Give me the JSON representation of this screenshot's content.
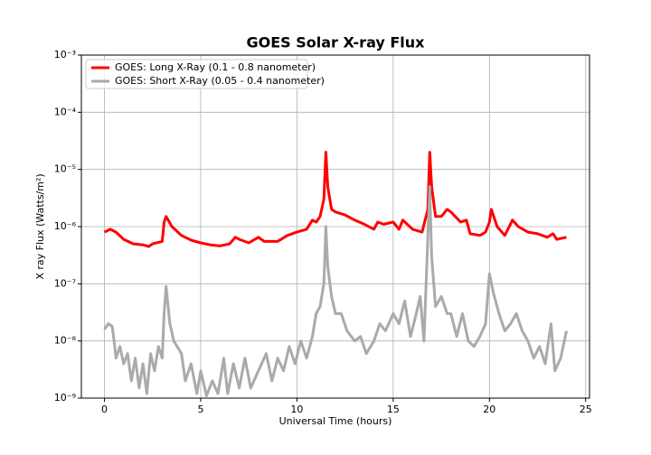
{
  "chart_data": {
    "type": "line",
    "title": "GOES Solar X-ray Flux",
    "x_label": "Universal Time (hours)",
    "y_label": "X ray Flux (Watts/m²)",
    "log_y": true,
    "grid": true,
    "legend": "upper left",
    "xlim": [
      -1.2,
      25.2
    ],
    "ylim": [
      1e-09,
      0.001
    ],
    "xticks": [
      0,
      5,
      10,
      15,
      20,
      25
    ],
    "yticks": [
      {
        "value": 1e-09,
        "label": "10⁻⁹"
      },
      {
        "value": 1e-08,
        "label": "10⁻⁸"
      },
      {
        "value": 1e-07,
        "label": "10⁻⁷"
      },
      {
        "value": 1e-06,
        "label": "10⁻⁶"
      },
      {
        "value": 1e-05,
        "label": "10⁻⁵"
      },
      {
        "value": 0.0001,
        "label": "10⁻⁴"
      },
      {
        "value": 0.001,
        "label": "10⁻³"
      }
    ],
    "series": [
      {
        "name": "GOES: Long X-Ray (0.1 - 0.8 nanometer)",
        "color": "#ff0000",
        "x": [
          0,
          0.3,
          0.6,
          1,
          1.5,
          2,
          2.3,
          2.5,
          3,
          3.1,
          3.2,
          3.5,
          4,
          4.5,
          5,
          5.5,
          6,
          6.5,
          6.8,
          7,
          7.5,
          8,
          8.3,
          9,
          9.5,
          10,
          10.5,
          10.8,
          11,
          11.2,
          11.4,
          11.5,
          11.6,
          11.8,
          12,
          12.5,
          13,
          13.5,
          14,
          14.2,
          14.5,
          15,
          15.3,
          15.5,
          16,
          16.5,
          16.8,
          16.9,
          17,
          17.2,
          17.5,
          17.8,
          18,
          18.5,
          18.8,
          19,
          19.5,
          19.8,
          20,
          20.1,
          20.4,
          20.8,
          21.2,
          21.5,
          22,
          22.5,
          23,
          23.3,
          23.5,
          24
        ],
        "values": [
          8e-07,
          9e-07,
          8e-07,
          6e-07,
          5e-07,
          4.8e-07,
          4.5e-07,
          5e-07,
          5.5e-07,
          1.2e-06,
          1.5e-06,
          1e-06,
          7e-07,
          5.8e-07,
          5.2e-07,
          4.8e-07,
          4.6e-07,
          5e-07,
          6.5e-07,
          6e-07,
          5.2e-07,
          6.5e-07,
          5.5e-07,
          5.5e-07,
          7e-07,
          8e-07,
          9e-07,
          1.3e-06,
          1.2e-06,
          1.5e-06,
          3e-06,
          2e-05,
          5e-06,
          2e-06,
          1.8e-06,
          1.6e-06,
          1.3e-06,
          1.1e-06,
          9e-07,
          1.2e-06,
          1.1e-06,
          1.2e-06,
          9e-07,
          1.3e-06,
          9e-07,
          8e-07,
          2e-06,
          2e-05,
          5e-06,
          1.5e-06,
          1.5e-06,
          2e-06,
          1.8e-06,
          1.2e-06,
          1.3e-06,
          7.5e-07,
          7e-07,
          8e-07,
          1.2e-06,
          2e-06,
          1e-06,
          7e-07,
          1.3e-06,
          1e-06,
          8e-07,
          7.5e-07,
          6.5e-07,
          7.5e-07,
          6e-07,
          6.5e-07
        ]
      },
      {
        "name": "GOES: Short X-Ray (0.05 - 0.4 nanometer)",
        "color": "#aaaaaa",
        "x": [
          0,
          0.2,
          0.4,
          0.5,
          0.6,
          0.8,
          1,
          1.2,
          1.4,
          1.6,
          1.8,
          2,
          2.2,
          2.4,
          2.6,
          2.8,
          3,
          3.1,
          3.2,
          3.4,
          3.6,
          4,
          4.2,
          4.5,
          4.8,
          5,
          5.3,
          5.6,
          5.9,
          6.2,
          6.4,
          6.7,
          7,
          7.3,
          7.6,
          8,
          8.4,
          8.7,
          9,
          9.3,
          9.6,
          9.9,
          10.2,
          10.5,
          10.8,
          11,
          11.2,
          11.4,
          11.5,
          11.6,
          11.8,
          12,
          12.3,
          12.6,
          13,
          13.3,
          13.6,
          14,
          14.3,
          14.6,
          15,
          15.3,
          15.6,
          15.9,
          16.2,
          16.4,
          16.6,
          16.9,
          17,
          17.2,
          17.5,
          17.8,
          18,
          18.3,
          18.6,
          18.9,
          19.2,
          19.5,
          19.8,
          20,
          20.2,
          20.5,
          20.8,
          21.1,
          21.4,
          21.7,
          22,
          22.3,
          22.6,
          22.9,
          23.2,
          23.4,
          23.7,
          24
        ],
        "values": [
          1.6e-08,
          2e-08,
          1.8e-08,
          1e-08,
          5e-09,
          8e-09,
          4e-09,
          6e-09,
          2e-09,
          5e-09,
          1.5e-09,
          4e-09,
          1.2e-09,
          6e-09,
          3e-09,
          8e-09,
          5e-09,
          3e-08,
          9e-08,
          2e-08,
          1e-08,
          6e-09,
          2e-09,
          4e-09,
          1.2e-09,
          3e-09,
          1.1e-09,
          2e-09,
          1.2e-09,
          5e-09,
          1.2e-09,
          4e-09,
          1.5e-09,
          5e-09,
          1.5e-09,
          3e-09,
          6e-09,
          2e-09,
          5e-09,
          3e-09,
          8e-09,
          4e-09,
          1e-08,
          5e-09,
          1.2e-08,
          3e-08,
          4e-08,
          1e-07,
          1e-06,
          2e-07,
          6e-08,
          3e-08,
          3e-08,
          1.5e-08,
          1e-08,
          1.2e-08,
          6e-09,
          1e-08,
          2e-08,
          1.5e-08,
          3e-08,
          2e-08,
          5e-08,
          1.2e-08,
          3e-08,
          6e-08,
          1e-08,
          5e-06,
          3e-07,
          4e-08,
          6e-08,
          3e-08,
          3e-08,
          1.2e-08,
          3e-08,
          1e-08,
          8e-09,
          1.2e-08,
          2e-08,
          1.5e-07,
          7e-08,
          3e-08,
          1.5e-08,
          2e-08,
          3e-08,
          1.5e-08,
          1e-08,
          5e-09,
          8e-09,
          4e-09,
          2e-08,
          3e-09,
          5e-09,
          1.5e-08
        ]
      }
    ]
  }
}
